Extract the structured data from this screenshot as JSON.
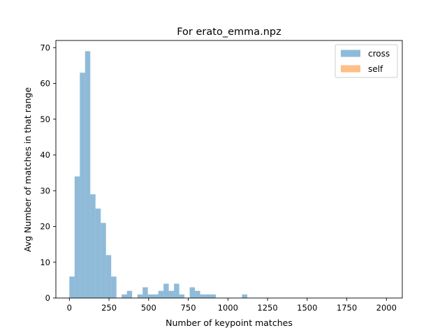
{
  "chart_data": {
    "type": "bar",
    "title": "For erato_emma.npz",
    "xlabel": "Number of keypoint matches",
    "ylabel": "Avg Number of matches in that range",
    "xlim": [
      -85,
      2100
    ],
    "ylim": [
      0,
      72
    ],
    "x_ticks": [
      0,
      250,
      500,
      750,
      1000,
      1250,
      1500,
      1750,
      2000
    ],
    "y_ticks": [
      0,
      10,
      20,
      30,
      40,
      50,
      60,
      70
    ],
    "legend_position": "top-right",
    "grid": false,
    "bin_width": 33,
    "series": [
      {
        "name": "cross",
        "color": "#1f77b4",
        "alpha": 0.5,
        "bins": [
          {
            "x0": 0,
            "value": 6
          },
          {
            "x0": 33,
            "value": 34
          },
          {
            "x0": 66,
            "value": 63
          },
          {
            "x0": 99,
            "value": 69
          },
          {
            "x0": 132,
            "value": 29
          },
          {
            "x0": 165,
            "value": 25
          },
          {
            "x0": 198,
            "value": 21
          },
          {
            "x0": 231,
            "value": 12
          },
          {
            "x0": 264,
            "value": 6
          },
          {
            "x0": 330,
            "value": 1
          },
          {
            "x0": 363,
            "value": 2
          },
          {
            "x0": 429,
            "value": 1
          },
          {
            "x0": 462,
            "value": 3
          },
          {
            "x0": 495,
            "value": 1
          },
          {
            "x0": 528,
            "value": 1
          },
          {
            "x0": 561,
            "value": 2
          },
          {
            "x0": 594,
            "value": 4
          },
          {
            "x0": 627,
            "value": 2
          },
          {
            "x0": 660,
            "value": 4
          },
          {
            "x0": 693,
            "value": 1
          },
          {
            "x0": 759,
            "value": 3
          },
          {
            "x0": 792,
            "value": 2
          },
          {
            "x0": 825,
            "value": 1
          },
          {
            "x0": 858,
            "value": 1
          },
          {
            "x0": 891,
            "value": 1
          },
          {
            "x0": 1089,
            "value": 1
          }
        ]
      },
      {
        "name": "self",
        "color": "#ff7f0e",
        "alpha": 0.5,
        "bins": []
      }
    ]
  }
}
